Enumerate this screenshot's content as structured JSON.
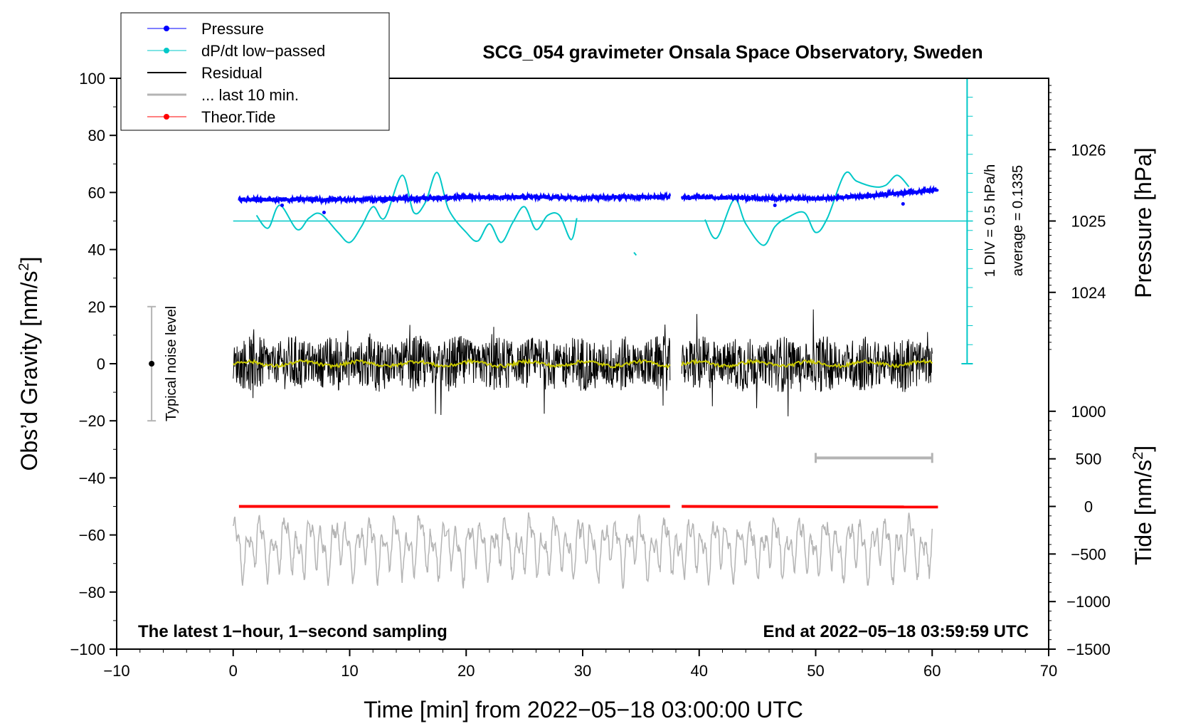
{
  "chart_data": {
    "type": "line",
    "title": "SCG_054 gravimeter Onsala Space Observatory, Sweden",
    "xlabel": "Time [min] from 2022−05−18 03:00:00 UTC",
    "ylabel_left": "Obs’d Gravity [nm/s",
    "ylabel_left_sup": "2",
    "ylabel_left_end": "]",
    "ylabel_right_pressure": "Pressure [hPa]",
    "ylabel_right_tide": "Tide [nm/s",
    "ylabel_right_tide_sup": "2",
    "ylabel_right_tide_end": "]",
    "xlim": [
      -10,
      70
    ],
    "ylim_left": [
      -100,
      100
    ],
    "x_ticks": [
      "−10",
      "0",
      "10",
      "20",
      "30",
      "40",
      "50",
      "60",
      "70"
    ],
    "x_tick_values": [
      -10,
      0,
      10,
      20,
      30,
      40,
      50,
      60,
      70
    ],
    "y_ticks_left": [
      "100",
      "80",
      "60",
      "40",
      "20",
      "0",
      "−20",
      "−40",
      "−60",
      "−80",
      "−100"
    ],
    "y_tick_values_left": [
      100,
      80,
      60,
      40,
      20,
      0,
      -20,
      -40,
      -60,
      -80,
      -100
    ],
    "pressure_ticks": [
      "1026",
      "1025",
      "1024"
    ],
    "pressure_tick_values": [
      1026,
      1025,
      1024
    ],
    "pressure_map": {
      "hPa_at_zero_offset": 1025,
      "left_units_per_hPa": 25,
      "left_value_at_1025": 50
    },
    "tide_ticks": [
      "1000",
      "500",
      "0",
      "−500",
      "−1000",
      "−1500"
    ],
    "tide_tick_values": [
      1000,
      500,
      0,
      -500,
      -1000,
      -1500
    ],
    "tide_map": {
      "left_value_at_0": -50,
      "left_units_per_500": 16.67
    },
    "legend": [
      {
        "label": "Pressure",
        "color": "#0000ff",
        "marker": true
      },
      {
        "label": "dP/dt low−passed",
        "color": "#00c8c8",
        "marker": true
      },
      {
        "label": "Residual",
        "color": "#000000",
        "marker": false
      },
      {
        "label": "... last 10 min.",
        "color": "#b4b4b4",
        "marker": false
      },
      {
        "label": "Theor.Tide",
        "color": "#ff0000",
        "marker": true
      }
    ],
    "annotations": {
      "noise_label": "Typical noise level",
      "noise_range": [
        -20,
        20
      ],
      "noise_x": -7,
      "div_label": "1 DIV = 0.5 hPa/h",
      "average_label": "average = 0.1335",
      "bottom_left": "The latest 1−hour, 1−second sampling",
      "bottom_right": "End at 2022−05−18 03:59:59 UTC",
      "last10_bar_x": [
        50,
        60
      ],
      "last10_bar_y": -33
    },
    "series": [
      {
        "name": "Pressure",
        "color": "#0000ff",
        "segments": [
          {
            "x": [
              0.5,
              5,
              10,
              15,
              20,
              25,
              30,
              37.5
            ],
            "y": [
              57.5,
              57.6,
              57.4,
              57.9,
              58.3,
              58.4,
              58.2,
              58.6
            ]
          },
          {
            "x": [
              38.5,
              42,
              46,
              50,
              54,
              58,
              60.5
            ],
            "y": [
              58.4,
              58.2,
              58.0,
              57.8,
              58.6,
              60.0,
              60.8
            ]
          }
        ]
      },
      {
        "name": "dP/dt low-passed",
        "color": "#00c8c8",
        "baseline_y": 50,
        "segments": [
          {
            "x": [
              2,
              3,
              4,
              5.5,
              6.5,
              7.5,
              9,
              10,
              11,
              12,
              13,
              14.5,
              15.5,
              16.5,
              17.5,
              18.5,
              20,
              21,
              22,
              23,
              24,
              25,
              26,
              27,
              28,
              29,
              29.5
            ],
            "y": [
              52,
              47.5,
              55.5,
              47,
              51,
              52.5,
              46,
              42.5,
              48,
              55,
              51,
              66,
              53,
              56.5,
              67,
              54,
              46,
              43,
              49,
              42.5,
              49.5,
              55,
              47,
              52,
              52,
              43.5,
              51
            ]
          },
          {
            "x": [
              40.5,
              41.5,
              43,
              44,
              45.5,
              46.5,
              47.5,
              49,
              50,
              51,
              52.5,
              53.5,
              55,
              56,
              57,
              58
            ],
            "y": [
              50.5,
              44,
              57.5,
              49,
              41.5,
              48,
              51,
              53,
              46,
              51,
              66.5,
              64,
              62,
              62.5,
              66,
              62
            ]
          }
        ]
      },
      {
        "name": "Residual",
        "color": "#000000",
        "x_range": [
          0,
          60
        ],
        "gap": [
          37.5,
          38.5
        ],
        "center": 0,
        "amplitude_range": [
          -21,
          19
        ]
      },
      {
        "name": "Residual smoothed",
        "color": "#c8c800",
        "x_range": [
          0,
          60
        ],
        "gap": [
          37.5,
          38.5
        ],
        "center": 0
      },
      {
        "name": "... last 10 min.",
        "color": "#b4b4b4",
        "x_range": [
          0,
          60
        ],
        "center": -64,
        "amplitude_range": [
          -81,
          -47
        ]
      },
      {
        "name": "Theor.Tide",
        "color": "#ff0000",
        "segments": [
          {
            "x": [
              0.5,
              37.5
            ],
            "y": [
              -50,
              -50
            ]
          },
          {
            "x": [
              38.5,
              60.5
            ],
            "y": [
              -50,
              -50.2
            ]
          }
        ]
      }
    ]
  }
}
